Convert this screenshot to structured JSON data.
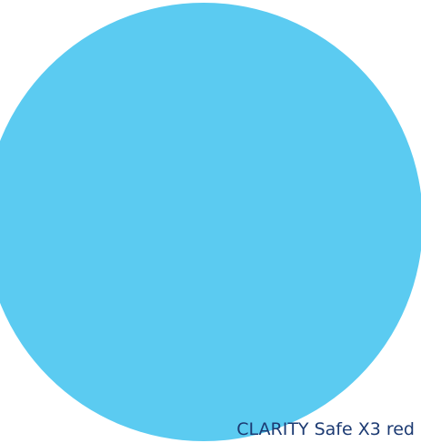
{
  "product": {
    "name": "CLARITY Safe X3 red"
  }
}
